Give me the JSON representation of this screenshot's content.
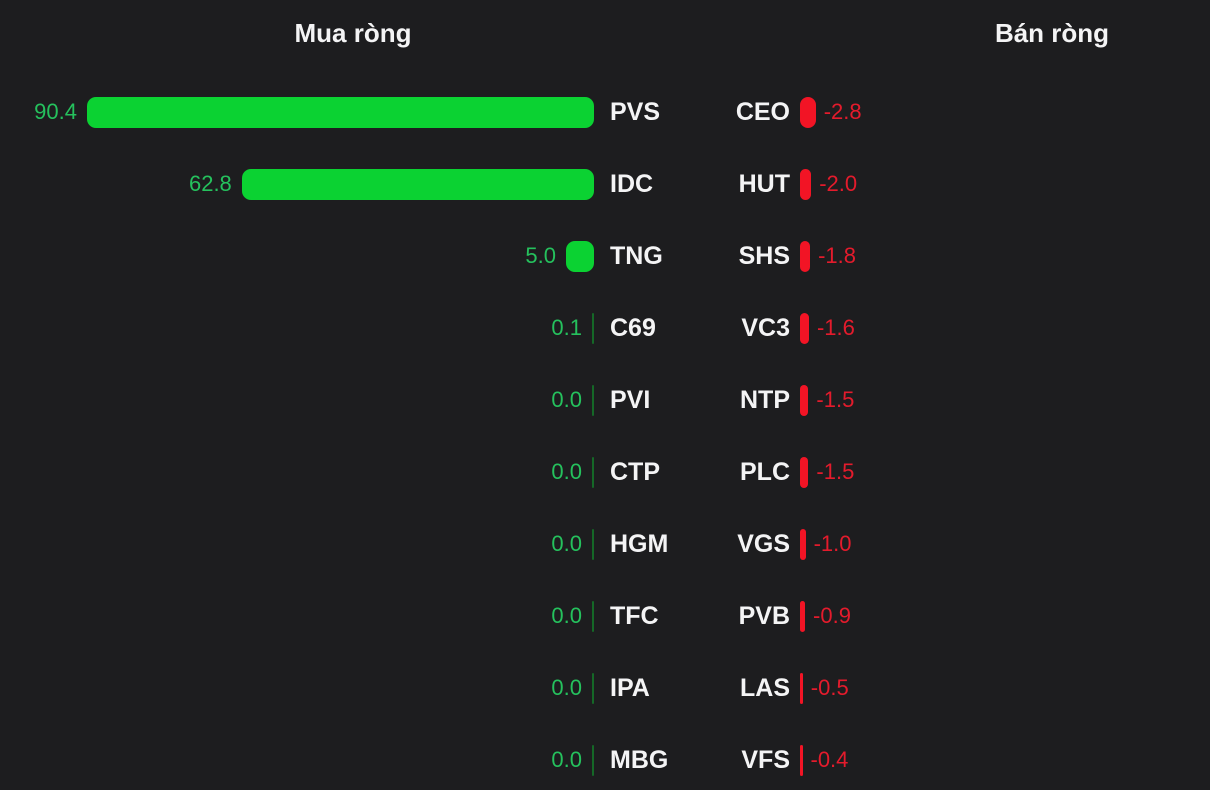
{
  "page": {
    "background": "#1d1d1f"
  },
  "chart_data": {
    "type": "bar",
    "layout": "tornado-top-net-buy-sell",
    "grid": false,
    "scale_max": 90.4,
    "left": {
      "title": "Mua ròng",
      "bar_color": "#0bd232",
      "value_color": "#25c15d",
      "series": [
        {
          "ticker": "PVS",
          "value": 90.4,
          "label": "90.4"
        },
        {
          "ticker": "IDC",
          "value": 62.8,
          "label": "62.8"
        },
        {
          "ticker": "TNG",
          "value": 5.0,
          "label": "5.0"
        },
        {
          "ticker": "C69",
          "value": 0.1,
          "label": "0.1"
        },
        {
          "ticker": "PVI",
          "value": 0.0,
          "label": "0.0"
        },
        {
          "ticker": "CTP",
          "value": 0.0,
          "label": "0.0"
        },
        {
          "ticker": "HGM",
          "value": 0.0,
          "label": "0.0"
        },
        {
          "ticker": "TFC",
          "value": 0.0,
          "label": "0.0"
        },
        {
          "ticker": "IPA",
          "value": 0.0,
          "label": "0.0"
        },
        {
          "ticker": "MBG",
          "value": 0.0,
          "label": "0.0"
        }
      ]
    },
    "right": {
      "title": "Bán ròng",
      "bar_color": "#f21425",
      "value_color": "#e41b2c",
      "series": [
        {
          "ticker": "CEO",
          "value": -2.8,
          "label": "-2.8"
        },
        {
          "ticker": "HUT",
          "value": -2.0,
          "label": "-2.0"
        },
        {
          "ticker": "SHS",
          "value": -1.8,
          "label": "-1.8"
        },
        {
          "ticker": "VC3",
          "value": -1.6,
          "label": "-1.6"
        },
        {
          "ticker": "NTP",
          "value": -1.5,
          "label": "-1.5"
        },
        {
          "ticker": "PLC",
          "value": -1.5,
          "label": "-1.5"
        },
        {
          "ticker": "VGS",
          "value": -1.0,
          "label": "-1.0"
        },
        {
          "ticker": "PVB",
          "value": -0.9,
          "label": "-0.9"
        },
        {
          "ticker": "LAS",
          "value": -0.5,
          "label": "-0.5"
        },
        {
          "ticker": "VFS",
          "value": -0.4,
          "label": "-0.4"
        }
      ]
    }
  }
}
